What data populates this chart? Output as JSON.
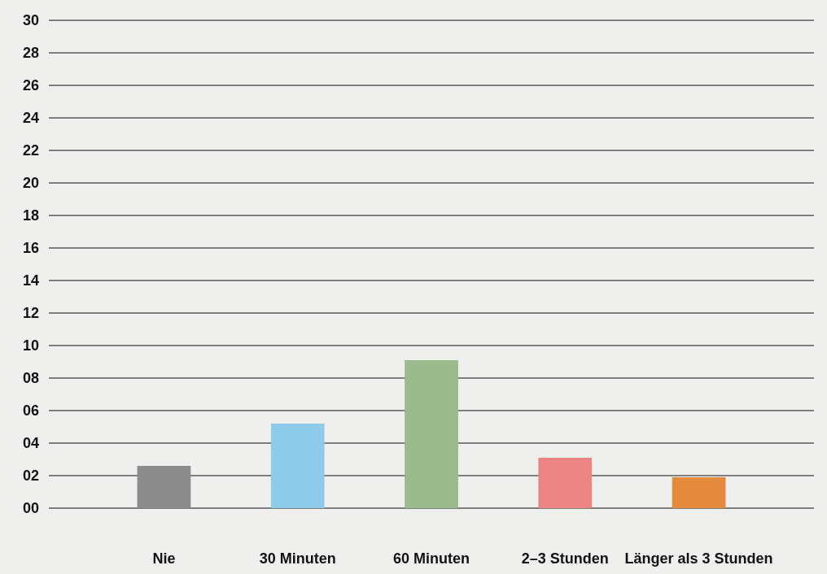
{
  "chart_data": {
    "type": "bar",
    "categories": [
      "Nie",
      "30 Minuten",
      "60 Minuten",
      "2–3 Stunden",
      "Länger als 3 Stunden"
    ],
    "values": [
      2.6,
      5.2,
      9.1,
      3.1,
      1.9
    ],
    "colors": [
      "#8c8c8c",
      "#8ecbea",
      "#9bbb8f",
      "#ee8585",
      "#e5893c"
    ],
    "ylim": [
      0,
      30
    ],
    "yticks": [
      {
        "value": 0,
        "label": "00"
      },
      {
        "value": 2,
        "label": "02"
      },
      {
        "value": 4,
        "label": "04"
      },
      {
        "value": 6,
        "label": "06"
      },
      {
        "value": 8,
        "label": "08"
      },
      10,
      12,
      14,
      16,
      18,
      20,
      22,
      24,
      26,
      28,
      30
    ],
    "grid": "y"
  }
}
